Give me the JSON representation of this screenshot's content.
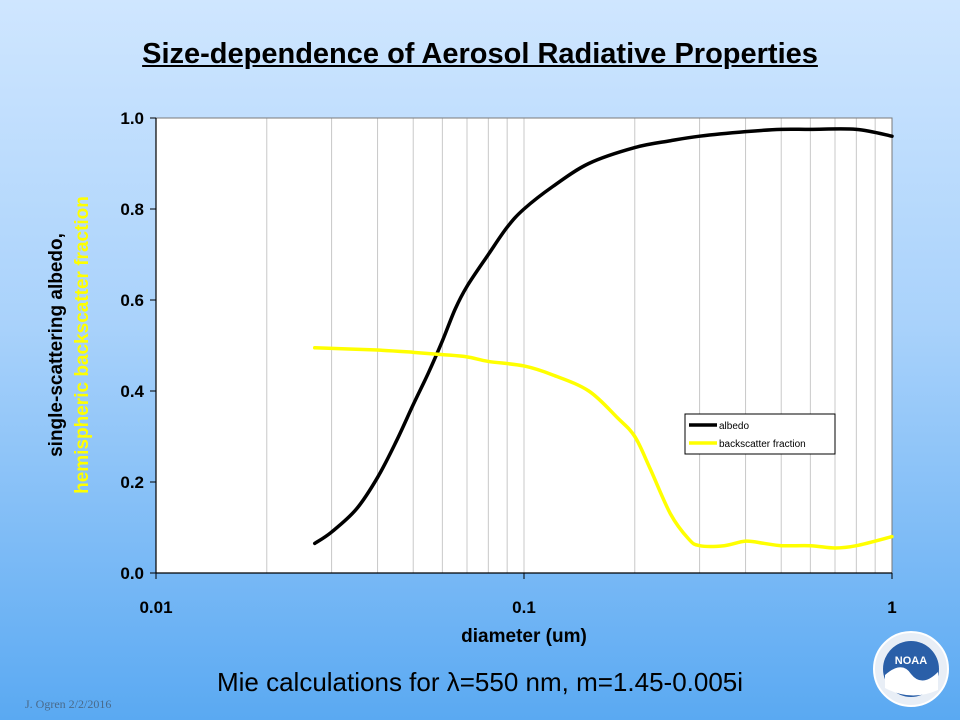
{
  "slide": {
    "title": "Size-dependence of Aerosol Radiative Properties",
    "footer_prefix": "Mie calculations for ",
    "footer_lambda": "λ",
    "footer_suffix": "=550 nm, m=1.45-0.005i",
    "credit": "J. Ogren  2/2/2016",
    "logo_text": "NOAA"
  },
  "colors": {
    "albedo": "#000000",
    "backscatter": "#ffff00",
    "ylabel_backscatter": "#ffff00"
  },
  "chart_data": {
    "type": "line",
    "title": "",
    "xlabel": "diameter (um)",
    "ylabel_lines": [
      "single-scattering albedo,",
      "hemispheric backscatter fraction"
    ],
    "x_scale": "log",
    "xlim": [
      0.01,
      1
    ],
    "ylim": [
      0,
      1
    ],
    "x_ticks": [
      {
        "value": 0.01,
        "label": "0.01"
      },
      {
        "value": 0.1,
        "label": "0.1"
      },
      {
        "value": 1,
        "label": "1"
      }
    ],
    "y_ticks": [
      {
        "value": 0,
        "label": "0.0"
      },
      {
        "value": 0.2,
        "label": "0.2"
      },
      {
        "value": 0.4,
        "label": "0.4"
      },
      {
        "value": 0.6,
        "label": "0.6"
      },
      {
        "value": 0.8,
        "label": "0.8"
      },
      {
        "value": 1.0,
        "label": "1.0"
      }
    ],
    "grid": "vertical-log",
    "legend_position": "right-middle",
    "series": [
      {
        "name": "albedo",
        "color": "#000000",
        "x": [
          0.027,
          0.03,
          0.035,
          0.04,
          0.045,
          0.05,
          0.055,
          0.06,
          0.065,
          0.07,
          0.08,
          0.09,
          0.1,
          0.12,
          0.15,
          0.2,
          0.25,
          0.3,
          0.4,
          0.5,
          0.6,
          0.8,
          1.0
        ],
        "y": [
          0.065,
          0.09,
          0.14,
          0.21,
          0.29,
          0.37,
          0.44,
          0.51,
          0.58,
          0.63,
          0.7,
          0.76,
          0.8,
          0.85,
          0.9,
          0.935,
          0.95,
          0.96,
          0.97,
          0.975,
          0.975,
          0.975,
          0.96
        ]
      },
      {
        "name": "backscatter fraction",
        "color": "#ffff00",
        "x": [
          0.027,
          0.04,
          0.05,
          0.06,
          0.07,
          0.08,
          0.1,
          0.12,
          0.15,
          0.18,
          0.2,
          0.22,
          0.25,
          0.28,
          0.3,
          0.35,
          0.4,
          0.45,
          0.5,
          0.6,
          0.7,
          0.8,
          1.0
        ],
        "y": [
          0.495,
          0.49,
          0.485,
          0.48,
          0.475,
          0.465,
          0.455,
          0.435,
          0.4,
          0.34,
          0.3,
          0.23,
          0.13,
          0.075,
          0.06,
          0.06,
          0.07,
          0.065,
          0.06,
          0.06,
          0.055,
          0.06,
          0.08
        ]
      }
    ]
  }
}
